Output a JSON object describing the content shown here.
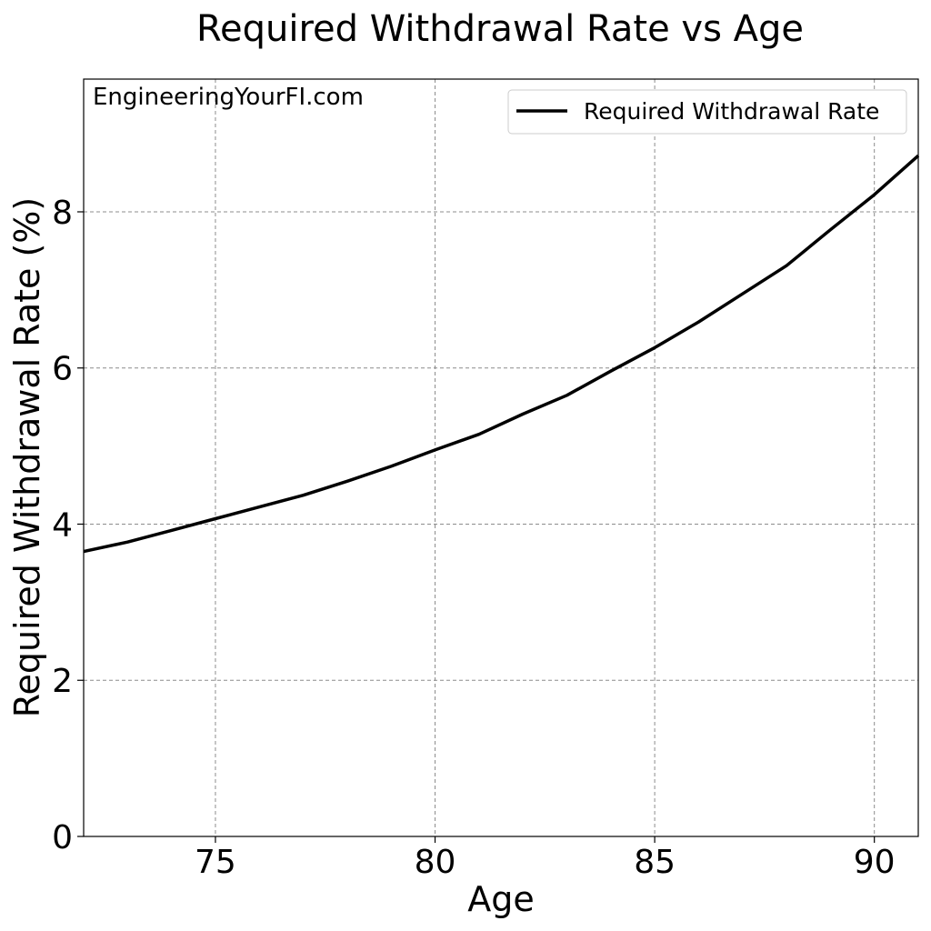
{
  "chart_data": {
    "type": "line",
    "title": "Required Withdrawal Rate vs Age",
    "xlabel": "Age",
    "ylabel": "Required Withdrawal Rate (%)",
    "xlim": [
      72,
      91
    ],
    "ylim": [
      0,
      9.7
    ],
    "xticks": [
      75,
      80,
      85,
      90
    ],
    "yticks": [
      0,
      2,
      4,
      6,
      8
    ],
    "grid": true,
    "legend_position": "upper-right",
    "annotation": "EngineeringYourFI.com",
    "series": [
      {
        "name": "Required Withdrawal Rate",
        "color": "#000000",
        "x": [
          72,
          73,
          74,
          75,
          76,
          77,
          78,
          79,
          80,
          81,
          82,
          83,
          84,
          85,
          86,
          87,
          88,
          89,
          90,
          91
        ],
        "y": [
          3.65,
          3.77,
          3.92,
          4.07,
          4.22,
          4.37,
          4.55,
          4.74,
          4.95,
          5.15,
          5.41,
          5.65,
          5.96,
          6.26,
          6.59,
          6.95,
          7.31,
          7.77,
          8.22,
          8.72
        ]
      }
    ]
  }
}
